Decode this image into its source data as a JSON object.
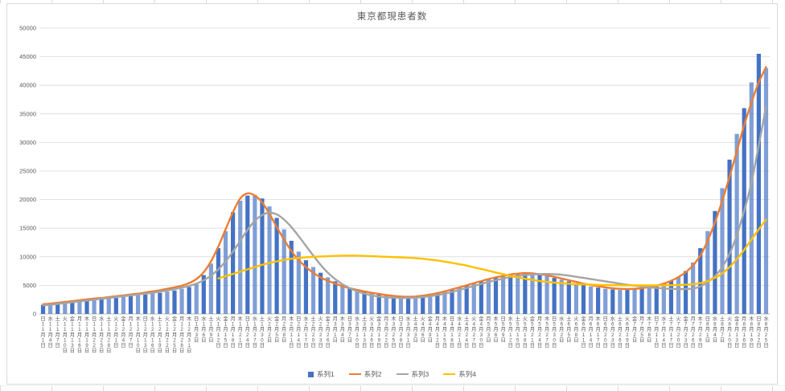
{
  "chart_data": {
    "type": "bar",
    "title": "東京都現患者数",
    "xlabel": "",
    "ylabel": "",
    "ylim": [
      0,
      50000
    ],
    "y_tick_step": 5000,
    "grid": true,
    "legend_position": "bottom",
    "colors": {
      "grid": "#d9d9d9",
      "axis_line": "#bfbfbf",
      "axis_text": "#595959"
    },
    "x_label_suffixes": {
      "month": "月",
      "day": "日"
    },
    "weekdays": [
      "日",
      "水",
      "土",
      "火",
      "金",
      "月",
      "木",
      "日",
      "水",
      "土",
      "火",
      "金",
      "月",
      "木",
      "日",
      "水",
      "土",
      "火",
      "金",
      "月",
      "木",
      "日",
      "水",
      "土",
      "火",
      "金",
      "月",
      "木",
      "日",
      "水",
      "土",
      "火",
      "金",
      "月",
      "木",
      "日",
      "水",
      "土",
      "火",
      "金",
      "月",
      "木",
      "日",
      "水",
      "土",
      "火",
      "金",
      "月",
      "木",
      "日",
      "水",
      "土",
      "火",
      "金",
      "月",
      "木",
      "日",
      "水",
      "土",
      "火",
      "金",
      "月",
      "木",
      "日",
      "水",
      "土",
      "火",
      "金",
      "月",
      "木",
      "日",
      "水",
      "土",
      "火",
      "金",
      "月",
      "木",
      "日",
      "水",
      "土",
      "火",
      "金",
      "月",
      "木",
      "日",
      "水",
      "土",
      "火",
      "金",
      "月",
      "木",
      "日",
      "水",
      "土",
      "火",
      "金",
      "月",
      "木",
      "日",
      "水"
    ],
    "months": [
      11,
      11,
      11,
      11,
      11,
      11,
      11,
      11,
      11,
      11,
      12,
      12,
      12,
      12,
      12,
      12,
      12,
      12,
      12,
      12,
      12,
      1,
      1,
      1,
      1,
      1,
      1,
      1,
      1,
      1,
      1,
      2,
      2,
      2,
      2,
      2,
      2,
      2,
      2,
      2,
      3,
      3,
      3,
      3,
      3,
      3,
      3,
      3,
      3,
      3,
      3,
      4,
      4,
      4,
      4,
      4,
      4,
      4,
      4,
      4,
      4,
      5,
      5,
      5,
      5,
      5,
      5,
      5,
      5,
      5,
      5,
      6,
      6,
      6,
      6,
      6,
      6,
      6,
      6,
      6,
      6,
      7,
      7,
      7,
      7,
      7,
      7,
      7,
      7,
      7,
      7,
      8,
      8,
      8,
      8,
      8,
      8,
      8,
      8,
      8
    ],
    "days": [
      1,
      4,
      7,
      10,
      13,
      16,
      19,
      22,
      25,
      28,
      1,
      4,
      7,
      10,
      13,
      16,
      19,
      22,
      25,
      28,
      31,
      3,
      6,
      9,
      12,
      15,
      18,
      21,
      24,
      27,
      30,
      2,
      5,
      8,
      11,
      14,
      17,
      20,
      23,
      26,
      1,
      4,
      7,
      10,
      13,
      16,
      19,
      22,
      25,
      28,
      31,
      3,
      6,
      9,
      12,
      15,
      18,
      21,
      24,
      27,
      30,
      3,
      6,
      9,
      12,
      15,
      18,
      21,
      24,
      27,
      30,
      2,
      5,
      8,
      11,
      14,
      17,
      20,
      23,
      26,
      29,
      2,
      5,
      8,
      11,
      14,
      17,
      20,
      23,
      26,
      29,
      1,
      4,
      7,
      10,
      13,
      16,
      19,
      22,
      25
    ],
    "series": [
      {
        "name": "系列1",
        "type": "bar",
        "color": "#4472C4",
        "values": [
          1600,
          1700,
          1800,
          2000,
          2200,
          2300,
          2500,
          2600,
          2550,
          2700,
          2800,
          3000,
          3100,
          3300,
          3400,
          3600,
          3700,
          3900,
          4100,
          4400,
          4700,
          5200,
          6800,
          8800,
          11500,
          14500,
          17800,
          19800,
          20700,
          20800,
          20200,
          18800,
          16800,
          14800,
          12800,
          10900,
          9400,
          8200,
          7200,
          6400,
          5700,
          5100,
          4600,
          4200,
          3900,
          3600,
          3400,
          3200,
          3000,
          2900,
          2900,
          3000,
          3100,
          3300,
          3600,
          3900,
          4200,
          4600,
          5000,
          5400,
          5700,
          6000,
          6300,
          6600,
          6900,
          7100,
          7200,
          7100,
          6900,
          6600,
          6300,
          6000,
          5700,
          5400,
          5100,
          4800,
          4600,
          4400,
          4300,
          4200,
          4200,
          4300,
          4400,
          4600,
          4900,
          5300,
          5800,
          6500,
          7500,
          9000,
          11500,
          14500,
          18000,
          22000,
          27000,
          31500,
          36000,
          40500,
          45500,
          43000
        ]
      },
      {
        "name": "系列2",
        "type": "line",
        "color": "#ED7D31",
        "values": [
          1700,
          1800,
          1950,
          2100,
          2250,
          2400,
          2550,
          2700,
          2800,
          2950,
          3100,
          3250,
          3400,
          3550,
          3750,
          3950,
          4150,
          4400,
          4650,
          4950,
          5400,
          6100,
          7300,
          9200,
          11800,
          14800,
          17800,
          20200,
          21100,
          20700,
          19500,
          17500,
          15200,
          13000,
          11000,
          9400,
          8200,
          7200,
          6400,
          5800,
          5300,
          4850,
          4500,
          4200,
          3950,
          3700,
          3500,
          3300,
          3150,
          3050,
          3000,
          3050,
          3200,
          3400,
          3650,
          3950,
          4300,
          4650,
          5000,
          5400,
          5750,
          6100,
          6400,
          6650,
          6900,
          7050,
          7150,
          7100,
          6950,
          6750,
          6500,
          6200,
          5900,
          5600,
          5300,
          5050,
          4850,
          4650,
          4500,
          4400,
          4350,
          4400,
          4500,
          4700,
          4950,
          5300,
          5800,
          6450,
          7300,
          8500,
          10200,
          12800,
          16000,
          19800,
          24000,
          28500,
          33000,
          37000,
          40500,
          43200
        ]
      },
      {
        "name": "系列3",
        "type": "line",
        "color": "#A5A5A5",
        "values": [
          1500,
          1600,
          1750,
          1900,
          2050,
          2200,
          2350,
          2500,
          2650,
          2800,
          2950,
          3100,
          3250,
          3400,
          3550,
          3700,
          3900,
          4100,
          4350,
          4600,
          4900,
          5300,
          5900,
          6700,
          7800,
          9200,
          10900,
          12800,
          14700,
          16300,
          17300,
          17700,
          17400,
          16500,
          15200,
          13600,
          11900,
          10200,
          8600,
          7200,
          6100,
          5200,
          4500,
          3950,
          3550,
          3250,
          3050,
          2900,
          2850,
          2800,
          2800,
          2850,
          2950,
          3100,
          3300,
          3550,
          3850,
          4200,
          4550,
          4900,
          5250,
          5600,
          5900,
          6200,
          6450,
          6650,
          6800,
          6900,
          6950,
          7000,
          6950,
          6850,
          6700,
          6500,
          6300,
          6100,
          5900,
          5700,
          5500,
          5300,
          5100,
          4950,
          4800,
          4650,
          4550,
          4450,
          4400,
          4350,
          4350,
          4450,
          4800,
          5600,
          6600,
          8200,
          10500,
          13800,
          18000,
          23000,
          29500,
          36300
        ]
      },
      {
        "name": "系列4",
        "type": "line",
        "color": "#FFC000",
        "values": [
          null,
          null,
          null,
          null,
          null,
          null,
          null,
          null,
          null,
          null,
          null,
          null,
          null,
          null,
          null,
          null,
          null,
          null,
          null,
          null,
          null,
          null,
          null,
          null,
          6200,
          6600,
          7000,
          7400,
          7800,
          8200,
          8600,
          8900,
          9200,
          9450,
          9650,
          9800,
          9900,
          10000,
          10050,
          10100,
          10150,
          10200,
          10200,
          10200,
          10150,
          10100,
          10050,
          10000,
          9950,
          9900,
          9850,
          9750,
          9650,
          9500,
          9350,
          9150,
          8950,
          8700,
          8450,
          8150,
          7850,
          7550,
          7250,
          6950,
          6650,
          6400,
          6150,
          5950,
          5750,
          5600,
          5480,
          5380,
          5300,
          5230,
          5170,
          5120,
          5080,
          5050,
          5030,
          5010,
          5000,
          5000,
          5000,
          5000,
          5000,
          5010,
          5030,
          5060,
          5110,
          5200,
          5400,
          5750,
          6300,
          7100,
          8200,
          9600,
          11200,
          13000,
          14800,
          16500
        ]
      }
    ]
  }
}
